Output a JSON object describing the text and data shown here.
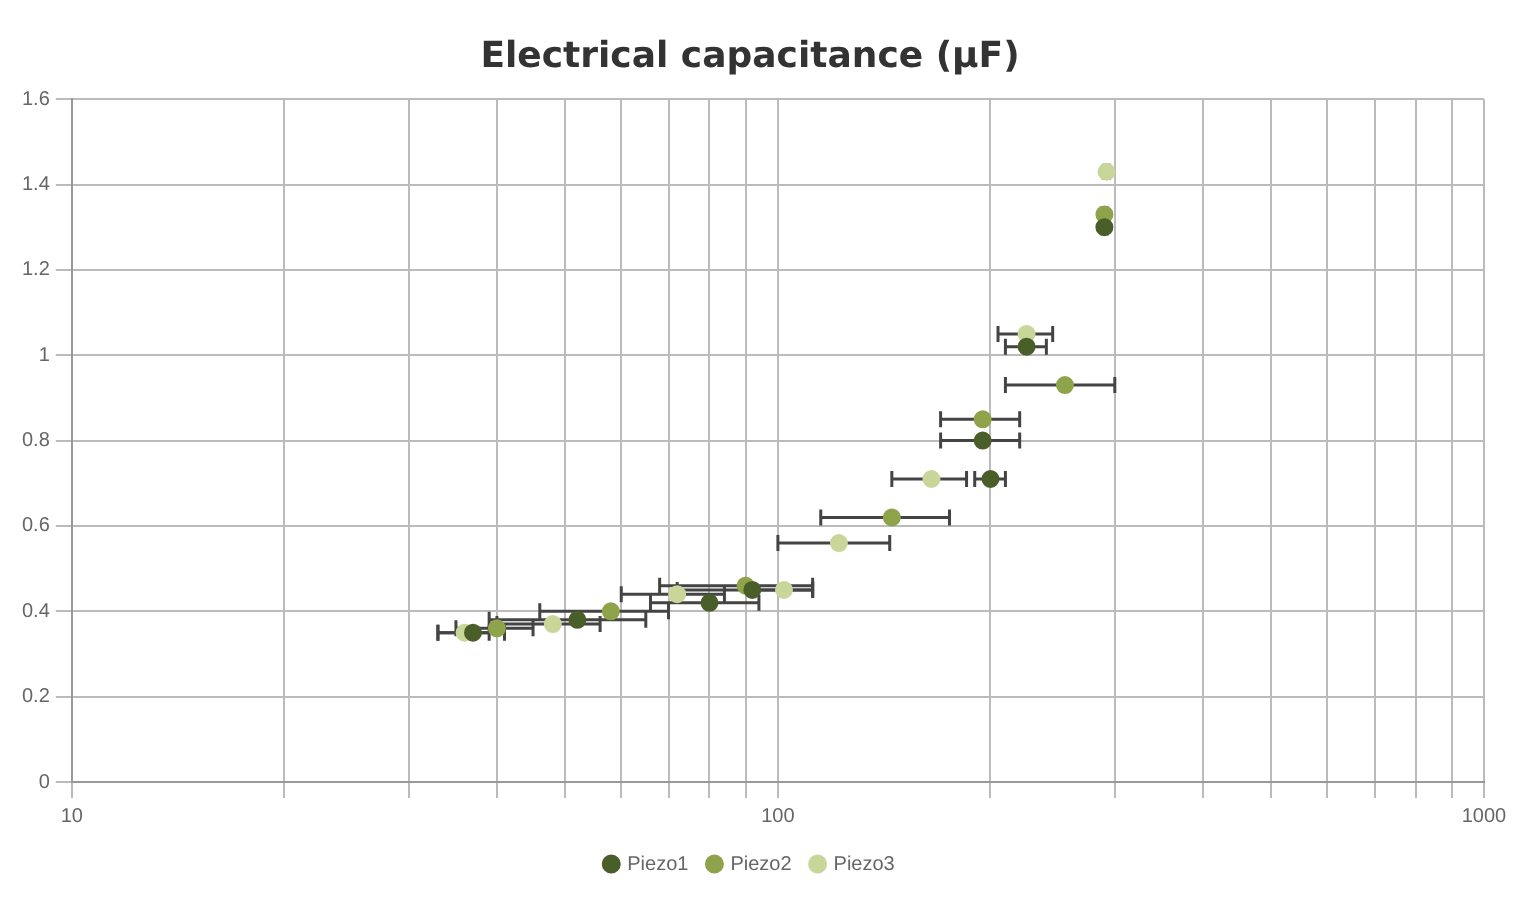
{
  "chart_data": {
    "type": "scatter",
    "title": "Electrical capacitance (µF)",
    "xlim": [
      10,
      1000
    ],
    "ylim": [
      0,
      1.6
    ],
    "log": "x",
    "marker": "circle",
    "grid": true,
    "legend": "bottom",
    "xticks": [
      10,
      {
        "value": 20,
        "label": null
      },
      {
        "value": 30,
        "label": null
      },
      {
        "value": 40,
        "label": null
      },
      {
        "value": 50,
        "label": null
      },
      {
        "value": 60,
        "label": null
      },
      {
        "value": 70,
        "label": null
      },
      {
        "value": 80,
        "label": null
      },
      {
        "value": 90,
        "label": null
      },
      100,
      {
        "value": 200,
        "label": null
      },
      {
        "value": 300,
        "label": null
      },
      {
        "value": 400,
        "label": null
      },
      {
        "value": 500,
        "label": null
      },
      {
        "value": 600,
        "label": null
      },
      {
        "value": 700,
        "label": null
      },
      {
        "value": 800,
        "label": null
      },
      {
        "value": 900,
        "label": null
      },
      1000
    ],
    "yticks": [
      0,
      0.2,
      0.4,
      0.6,
      0.8,
      1,
      1.2,
      1.4,
      1.6
    ],
    "series": [
      {
        "name": "Piezo1",
        "color": "#4a5e2a",
        "x": [
          37,
          52,
          80,
          92,
          200,
          195,
          225,
          290
        ],
        "values": [
          0.35,
          0.38,
          0.42,
          0.45,
          0.71,
          0.8,
          1.02,
          1.3
        ],
        "xerrors": [
          4,
          13,
          14,
          20,
          10,
          25,
          15,
          3
        ]
      },
      {
        "name": "Piezo2",
        "color": "#8fa34a",
        "x": [
          40,
          58,
          90,
          145,
          195,
          255,
          290
        ],
        "values": [
          0.36,
          0.4,
          0.46,
          0.62,
          0.85,
          0.93,
          1.33
        ],
        "xerrors": [
          5,
          12,
          22,
          30,
          25,
          45,
          3
        ]
      },
      {
        "name": "Piezo3",
        "color": "#c9d69a",
        "x": [
          36,
          48,
          72,
          102,
          122,
          165,
          225,
          292
        ],
        "values": [
          0.35,
          0.37,
          0.44,
          0.45,
          0.56,
          0.71,
          1.05,
          1.43
        ],
        "xerrors": [
          3,
          8,
          12,
          10,
          22,
          20,
          20,
          3
        ]
      }
    ]
  }
}
